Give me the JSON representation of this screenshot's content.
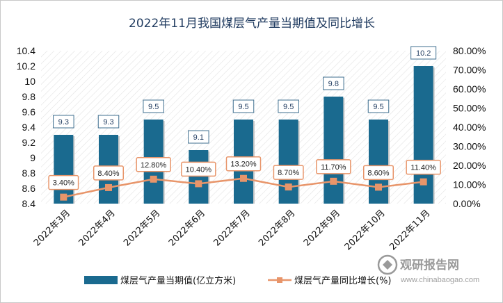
{
  "chart_data": {
    "type": "bar+line",
    "title": "2022年11月我国煤层气产量当期值及同比增长",
    "categories": [
      "2022年3月",
      "2022年4月",
      "2022年5月",
      "2022年6月",
      "2022年7月",
      "2022年8月",
      "2022年9月",
      "2022年10月",
      "2022年11月"
    ],
    "series": [
      {
        "name": "煤层气产量当期值(亿立方米)",
        "type": "bar",
        "axis": "left",
        "values": [
          9.3,
          9.3,
          9.5,
          9.1,
          9.5,
          9.5,
          9.8,
          9.5,
          10.2
        ],
        "labels": [
          "9.3",
          "9.3",
          "9.5",
          "9.1",
          "9.5",
          "9.5",
          "9.8",
          "9.5",
          "10.2"
        ],
        "color": "#1a6a8f"
      },
      {
        "name": "煤层气产量同比增长(%)",
        "type": "line",
        "axis": "right",
        "values": [
          3.4,
          8.4,
          12.8,
          10.4,
          13.2,
          8.7,
          11.7,
          8.6,
          11.4
        ],
        "labels": [
          "3.40%",
          "8.40%",
          "12.80%",
          "10.40%",
          "13.20%",
          "8.70%",
          "11.70%",
          "8.60%",
          "11.40%"
        ],
        "color": "#e8956a"
      }
    ],
    "y_left": {
      "range": [
        8.4,
        10.4
      ],
      "ticks": [
        "8.4",
        "8.6",
        "8.8",
        "9",
        "9.2",
        "9.4",
        "9.6",
        "9.8",
        "10",
        "10.2",
        "10.4"
      ]
    },
    "y_right": {
      "range": [
        0,
        80
      ],
      "ticks": [
        "0.00%",
        "10.00%",
        "20.00%",
        "30.00%",
        "40.00%",
        "50.00%",
        "60.00%",
        "70.00%",
        "80.00%"
      ]
    },
    "legend_position": "bottom",
    "grid": false,
    "plot_background": "diagonal-hatch"
  },
  "watermark": {
    "main": "观研报告网",
    "url": "www.chinabaogao.com"
  }
}
